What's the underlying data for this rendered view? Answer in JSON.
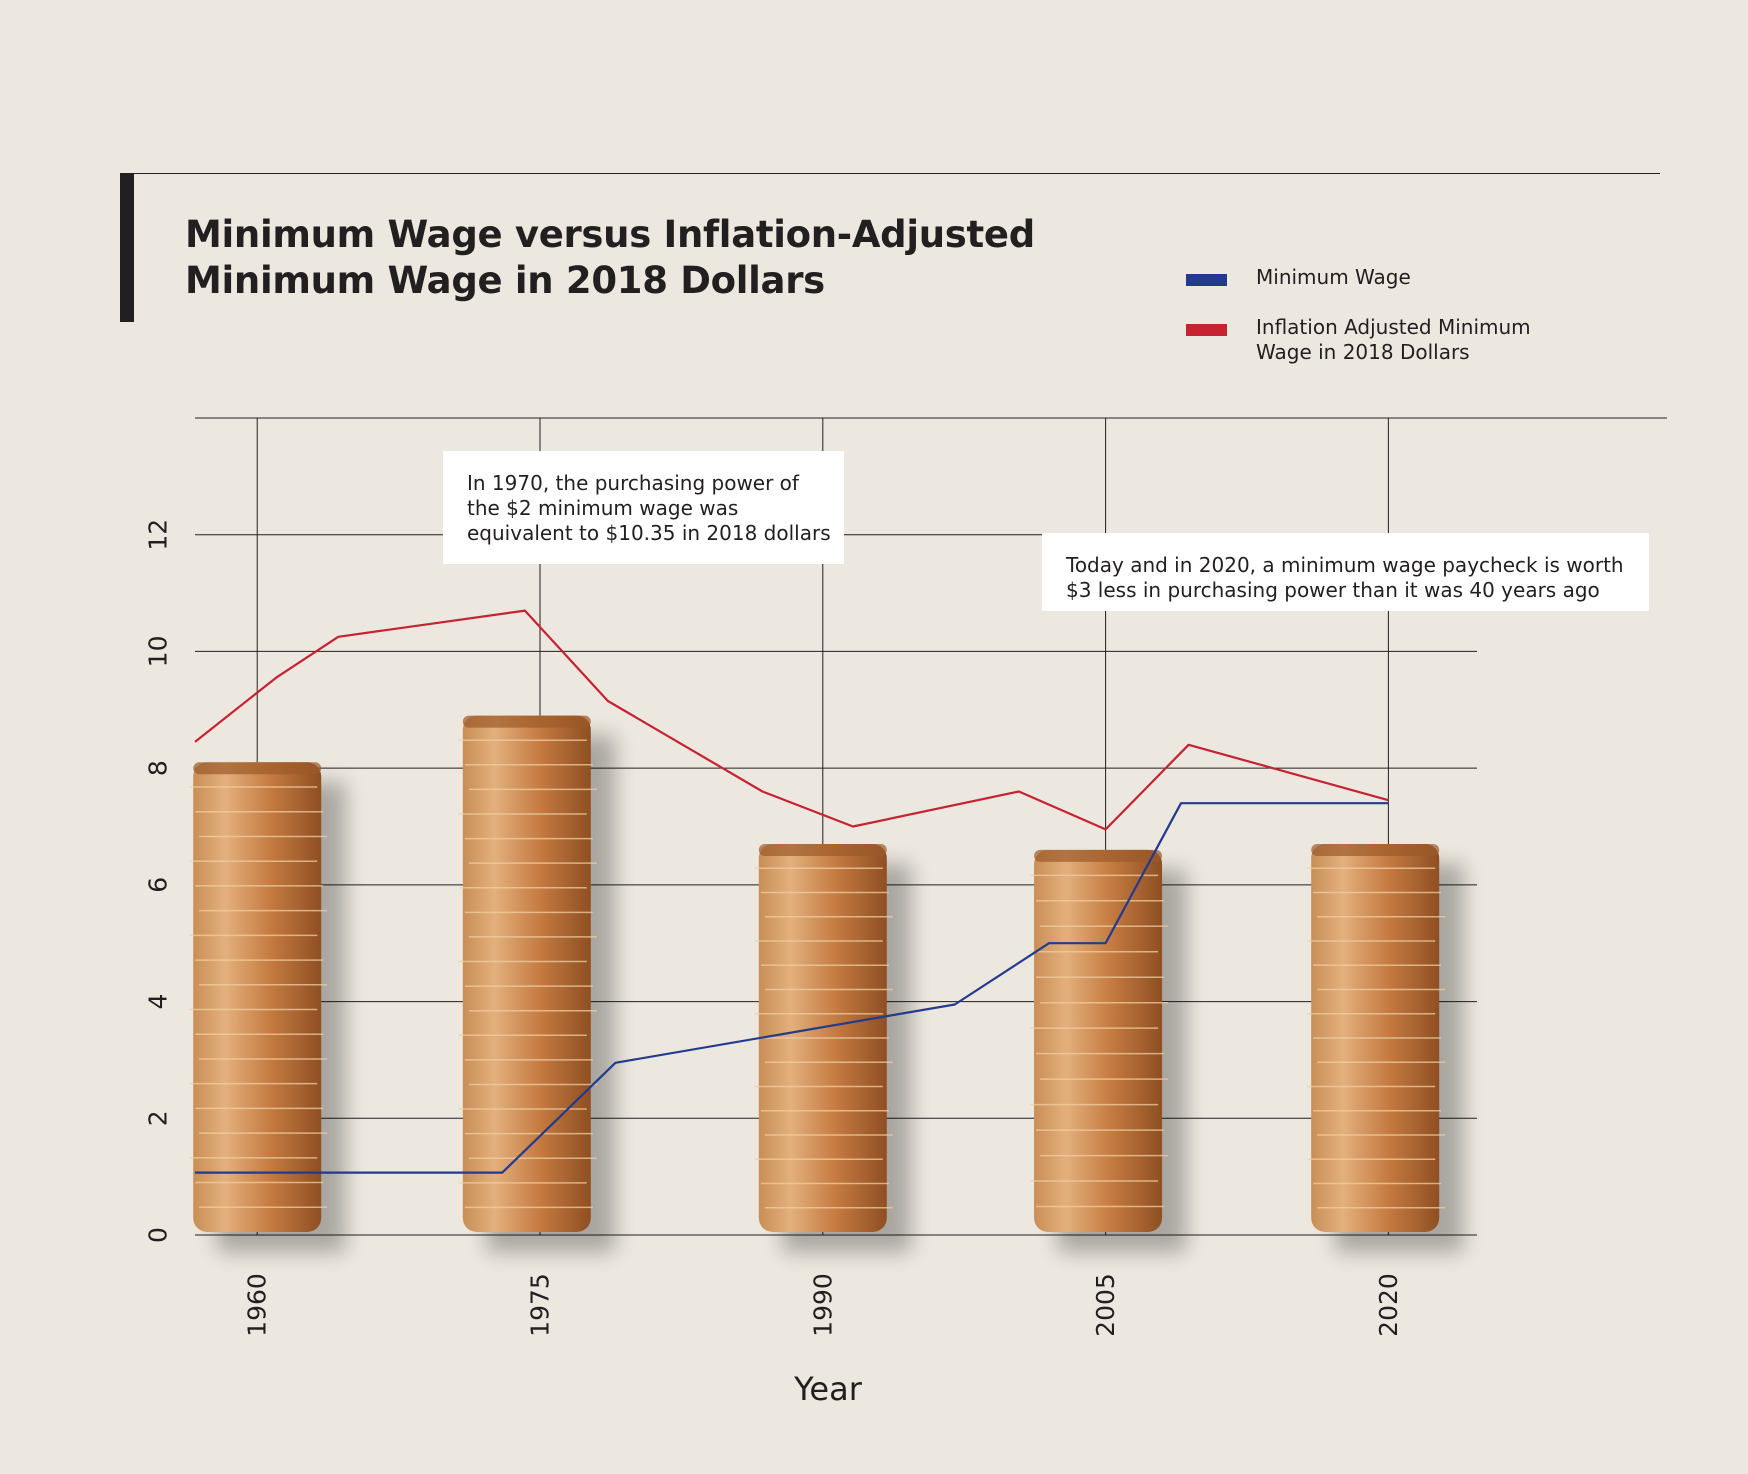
{
  "title_lines": [
    "Minimum Wage versus Inflation-Adjusted",
    "Minimum Wage in 2018 Dollars"
  ],
  "legend": [
    {
      "label_lines": [
        "Minimum Wage"
      ],
      "color": "#233a8e"
    },
    {
      "label_lines": [
        "Inflation Adjusted Minimum",
        "Wage in 2018 Dollars"
      ],
      "color": "#c62231"
    }
  ],
  "annotations": [
    {
      "lines": [
        "In 1970, the purchasing power of",
        "the $2 minimum wage was",
        "equivalent to $10.35 in 2018 dollars"
      ]
    },
    {
      "lines": [
        "Today and in 2020, a minimum wage paycheck is worth",
        "$3 less in purchasing power than it was 40 years ago"
      ]
    }
  ],
  "chart_data": {
    "type": "line",
    "title": "Minimum Wage versus Inflation-Adjusted Minimum Wage in 2018 Dollars",
    "xlabel": "Year",
    "ylabel": "",
    "x_ticks": [
      1960,
      1975,
      1990,
      2005,
      2020
    ],
    "y_ticks": [
      0,
      2,
      4,
      6,
      8,
      10,
      12
    ],
    "xlim": [
      1956.7,
      2024.7
    ],
    "ylim": [
      0,
      14
    ],
    "grid": true,
    "legend_position": "top-right",
    "series": [
      {
        "name": "Minimum Wage",
        "color": "#233a8e",
        "x": [
          1956.7,
          1973,
          1979,
          1997,
          2002,
          2005,
          2009,
          2020
        ],
        "y": [
          1.07,
          1.07,
          2.95,
          3.95,
          5.0,
          5.0,
          7.4,
          7.4
        ]
      },
      {
        "name": "Inflation Adjusted Minimum Wage in 2018 Dollars",
        "color": "#c62231",
        "x": [
          1956.7,
          1961,
          1964.3,
          1974.2,
          1978.6,
          1986.8,
          1991.6,
          2000.4,
          2005,
          2009.4,
          2020
        ],
        "y": [
          8.45,
          9.55,
          10.25,
          10.7,
          9.15,
          7.6,
          7.0,
          7.6,
          6.95,
          8.4,
          7.45
        ]
      }
    ],
    "bread_stacks": [
      {
        "x": 1960,
        "height": 8.1
      },
      {
        "x": 1974.3,
        "height": 8.9
      },
      {
        "x": 1990,
        "height": 6.7
      },
      {
        "x": 2004.6,
        "height": 6.6
      },
      {
        "x": 2019.3,
        "height": 6.7
      }
    ]
  }
}
